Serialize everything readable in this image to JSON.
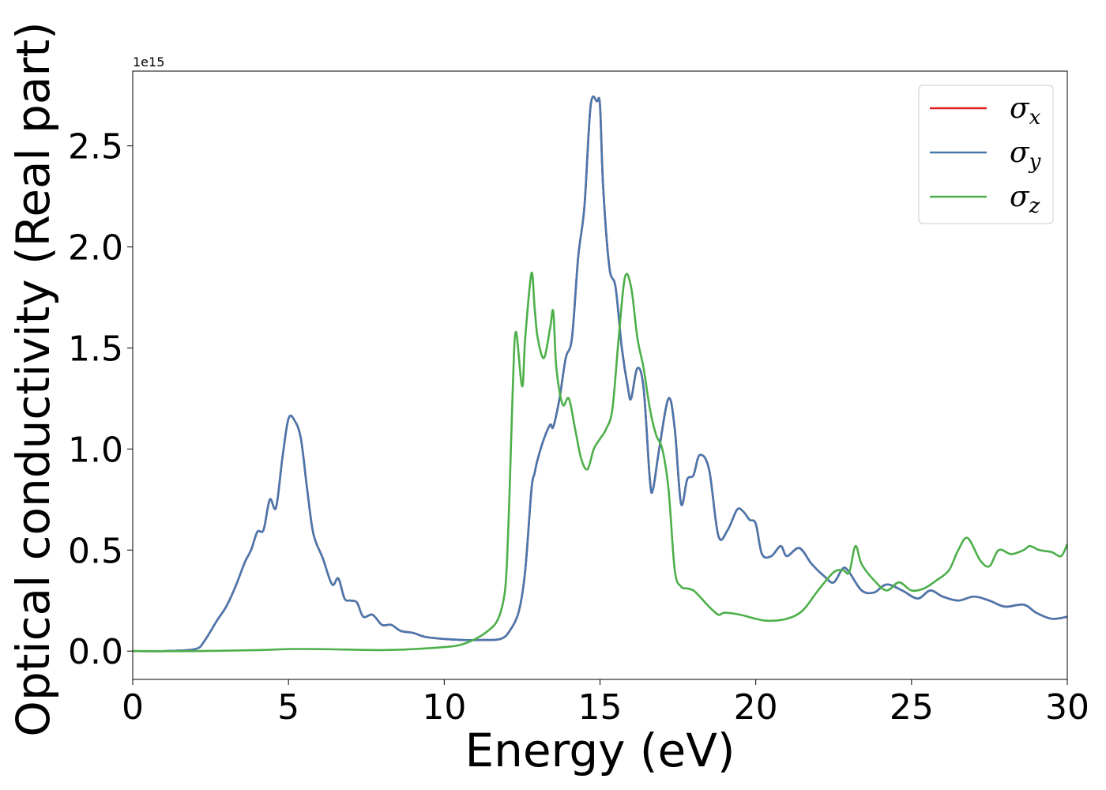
{
  "chart_data": {
    "type": "line",
    "title": "",
    "xlabel": "Energy (eV)",
    "ylabel": "Optical conductivity (Real part)",
    "y_offset_label": "1e15",
    "xlim": [
      0,
      30
    ],
    "ylim": [
      -0.14,
      2.87
    ],
    "x_ticks": [
      0,
      5,
      10,
      15,
      20,
      25,
      30
    ],
    "x_tick_labels": [
      "0",
      "5",
      "10",
      "15",
      "20",
      "25",
      "30"
    ],
    "y_ticks": [
      0.0,
      0.5,
      1.0,
      1.5,
      2.0,
      2.5
    ],
    "y_tick_labels": [
      "0.0",
      "0.5",
      "1.0",
      "1.5",
      "2.0",
      "2.5"
    ],
    "grid": false,
    "legend_position": "top-right",
    "series": [
      {
        "name": "σ",
        "subscript": "x",
        "color": "#e41a1c",
        "x": [
          0,
          1,
          2,
          2.3,
          2.7,
          3.0,
          3.3,
          3.6,
          3.8,
          4.0,
          4.2,
          4.4,
          4.6,
          4.8,
          5.0,
          5.2,
          5.4,
          5.6,
          5.8,
          6.1,
          6.4,
          6.6,
          6.8,
          7.0,
          7.2,
          7.4,
          7.7,
          8.0,
          8.3,
          8.6,
          9.0,
          9.4,
          10.0,
          10.6,
          11.2,
          11.8,
          12.1,
          12.4,
          12.6,
          12.8,
          12.9,
          13.0,
          13.2,
          13.4,
          13.5,
          13.7,
          13.9,
          14.1,
          14.3,
          14.5,
          14.7,
          14.9,
          15.0,
          15.1,
          15.3,
          15.5,
          15.7,
          15.9,
          16.0,
          16.2,
          16.4,
          16.6,
          16.7,
          16.9,
          17.2,
          17.4,
          17.6,
          17.8,
          18.0,
          18.2,
          18.5,
          18.8,
          19.1,
          19.4,
          19.6,
          19.8,
          20.0,
          20.2,
          20.5,
          20.8,
          21.0,
          21.4,
          21.8,
          22.2,
          22.5,
          22.8,
          23.0,
          23.4,
          23.8,
          24.2,
          24.7,
          25.2,
          25.6,
          26.0,
          26.5,
          27.0,
          27.5,
          28.0,
          28.6,
          29.0,
          29.5,
          30.0
        ],
        "values": [
          0,
          0,
          0.01,
          0.05,
          0.15,
          0.22,
          0.32,
          0.44,
          0.5,
          0.59,
          0.6,
          0.75,
          0.71,
          0.95,
          1.15,
          1.14,
          1.05,
          0.8,
          0.58,
          0.46,
          0.33,
          0.36,
          0.26,
          0.25,
          0.24,
          0.17,
          0.18,
          0.13,
          0.13,
          0.1,
          0.09,
          0.07,
          0.06,
          0.055,
          0.055,
          0.06,
          0.1,
          0.2,
          0.4,
          0.8,
          0.88,
          0.95,
          1.05,
          1.12,
          1.11,
          1.25,
          1.45,
          1.55,
          1.95,
          2.2,
          2.7,
          2.72,
          2.7,
          2.3,
          1.9,
          1.8,
          1.5,
          1.3,
          1.25,
          1.4,
          1.3,
          0.85,
          0.8,
          1.0,
          1.25,
          1.1,
          0.73,
          0.85,
          0.87,
          0.97,
          0.9,
          0.57,
          0.6,
          0.7,
          0.69,
          0.65,
          0.63,
          0.48,
          0.47,
          0.52,
          0.47,
          0.51,
          0.43,
          0.37,
          0.34,
          0.41,
          0.39,
          0.3,
          0.29,
          0.33,
          0.3,
          0.26,
          0.3,
          0.27,
          0.25,
          0.27,
          0.25,
          0.22,
          0.23,
          0.19,
          0.16,
          0.17
        ]
      },
      {
        "name": "σ",
        "subscript": "y",
        "color": "#4878ae",
        "x": [
          0,
          1,
          2,
          2.3,
          2.7,
          3.0,
          3.3,
          3.6,
          3.8,
          4.0,
          4.2,
          4.4,
          4.6,
          4.8,
          5.0,
          5.2,
          5.4,
          5.6,
          5.8,
          6.1,
          6.4,
          6.6,
          6.8,
          7.0,
          7.2,
          7.4,
          7.7,
          8.0,
          8.3,
          8.6,
          9.0,
          9.4,
          10.0,
          10.6,
          11.2,
          11.8,
          12.1,
          12.4,
          12.6,
          12.8,
          12.9,
          13.0,
          13.2,
          13.4,
          13.5,
          13.7,
          13.9,
          14.1,
          14.3,
          14.5,
          14.7,
          14.9,
          15.0,
          15.1,
          15.3,
          15.5,
          15.7,
          15.9,
          16.0,
          16.2,
          16.4,
          16.6,
          16.7,
          16.9,
          17.2,
          17.4,
          17.6,
          17.8,
          18.0,
          18.2,
          18.5,
          18.8,
          19.1,
          19.4,
          19.6,
          19.8,
          20.0,
          20.2,
          20.5,
          20.8,
          21.0,
          21.4,
          21.8,
          22.2,
          22.5,
          22.8,
          23.0,
          23.4,
          23.8,
          24.2,
          24.7,
          25.2,
          25.6,
          26.0,
          26.5,
          27.0,
          27.5,
          28.0,
          28.6,
          29.0,
          29.5,
          30.0
        ],
        "values": [
          0,
          0,
          0.01,
          0.05,
          0.15,
          0.22,
          0.32,
          0.44,
          0.5,
          0.59,
          0.6,
          0.75,
          0.71,
          0.95,
          1.15,
          1.14,
          1.05,
          0.8,
          0.58,
          0.46,
          0.33,
          0.36,
          0.26,
          0.25,
          0.24,
          0.17,
          0.18,
          0.13,
          0.13,
          0.1,
          0.09,
          0.07,
          0.06,
          0.055,
          0.055,
          0.06,
          0.1,
          0.2,
          0.4,
          0.8,
          0.88,
          0.95,
          1.05,
          1.12,
          1.11,
          1.25,
          1.45,
          1.55,
          1.95,
          2.2,
          2.7,
          2.72,
          2.7,
          2.3,
          1.9,
          1.8,
          1.5,
          1.3,
          1.25,
          1.4,
          1.3,
          0.85,
          0.8,
          1.0,
          1.25,
          1.1,
          0.73,
          0.85,
          0.87,
          0.97,
          0.9,
          0.57,
          0.6,
          0.7,
          0.69,
          0.65,
          0.63,
          0.48,
          0.47,
          0.52,
          0.47,
          0.51,
          0.43,
          0.37,
          0.34,
          0.41,
          0.39,
          0.3,
          0.29,
          0.33,
          0.3,
          0.26,
          0.3,
          0.27,
          0.25,
          0.27,
          0.25,
          0.22,
          0.23,
          0.19,
          0.16,
          0.17
        ]
      },
      {
        "name": "σ",
        "subscript": "z",
        "color": "#4daf4a",
        "x": [
          0,
          2,
          4,
          5,
          6,
          8,
          9,
          10,
          10.5,
          11,
          11.4,
          11.7,
          11.9,
          12.0,
          12.1,
          12.2,
          12.3,
          12.5,
          12.6,
          12.8,
          12.9,
          13.0,
          13.2,
          13.4,
          13.5,
          13.6,
          13.8,
          14.0,
          14.2,
          14.4,
          14.6,
          14.8,
          15.0,
          15.2,
          15.4,
          15.6,
          15.8,
          16.0,
          16.2,
          16.4,
          16.6,
          16.8,
          17.0,
          17.2,
          17.4,
          17.6,
          17.8,
          18.0,
          18.2,
          18.5,
          18.8,
          19.0,
          19.5,
          20.0,
          20.4,
          21.0,
          21.5,
          22.0,
          22.5,
          22.8,
          23.0,
          23.2,
          23.4,
          23.8,
          24.2,
          24.6,
          25.0,
          25.4,
          25.8,
          26.2,
          26.5,
          26.8,
          27.2,
          27.5,
          27.8,
          28.2,
          28.6,
          28.8,
          29.1,
          29.5,
          29.8,
          30.0
        ],
        "values": [
          0,
          0,
          0.005,
          0.01,
          0.01,
          0.005,
          0.01,
          0.02,
          0.03,
          0.06,
          0.1,
          0.15,
          0.25,
          0.4,
          0.8,
          1.3,
          1.58,
          1.31,
          1.55,
          1.87,
          1.7,
          1.55,
          1.45,
          1.6,
          1.68,
          1.4,
          1.22,
          1.25,
          1.1,
          0.95,
          0.9,
          1.0,
          1.05,
          1.1,
          1.2,
          1.55,
          1.85,
          1.8,
          1.55,
          1.4,
          1.2,
          1.07,
          1.0,
          0.8,
          0.4,
          0.32,
          0.31,
          0.3,
          0.27,
          0.22,
          0.18,
          0.19,
          0.18,
          0.16,
          0.15,
          0.16,
          0.2,
          0.3,
          0.39,
          0.4,
          0.39,
          0.52,
          0.43,
          0.35,
          0.3,
          0.34,
          0.3,
          0.31,
          0.35,
          0.4,
          0.5,
          0.56,
          0.45,
          0.42,
          0.5,
          0.48,
          0.5,
          0.52,
          0.5,
          0.49,
          0.47,
          0.53
        ]
      }
    ]
  }
}
